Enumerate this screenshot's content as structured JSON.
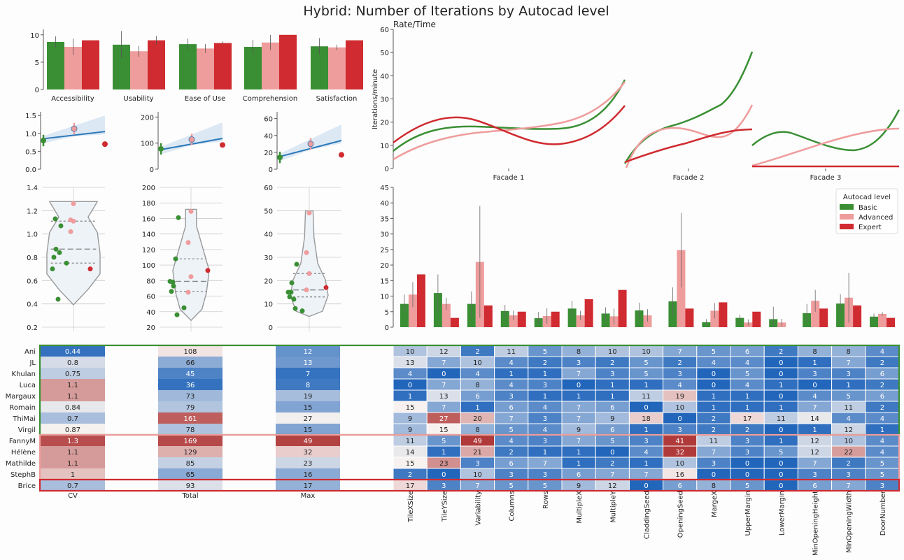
{
  "title": "Hybrid: Number of Iterations by Autocad level",
  "legend": {
    "title": "Autocad level",
    "items": [
      "Basic",
      "Advanced",
      "Expert"
    ]
  },
  "colors": {
    "Basic": "#3a8f34",
    "Advanced": "#ef9c9c",
    "Expert": "#cf2b30"
  },
  "chart_data": [
    {
      "type": "bar",
      "categories": [
        "Accessibility",
        "Usability",
        "Ease of Use",
        "Comprehension",
        "Satisfaction"
      ],
      "series": [
        {
          "name": "Basic",
          "values": [
            8.7,
            8.2,
            8.3,
            7.8,
            7.9
          ]
        },
        {
          "name": "Advanced",
          "values": [
            7.8,
            7.0,
            7.5,
            8.6,
            7.7
          ]
        },
        {
          "name": "Expert",
          "values": [
            9.0,
            9.0,
            8.5,
            10.0,
            9.0
          ]
        }
      ],
      "yticks": [
        "0",
        "5",
        "10"
      ],
      "ylim": [
        0,
        11
      ]
    },
    {
      "type": "scatter",
      "panels": [
        {
          "ylim": [
            0,
            1.6
          ],
          "yticks": [
            "0.0",
            "0.5",
            "1.0",
            "1.5"
          ],
          "points": {
            "Basic": 0.8,
            "Advanced": 1.13,
            "Expert": 0.7
          },
          "fit": [
            0.85,
            1.05
          ]
        },
        {
          "ylim": [
            0,
            220
          ],
          "yticks": [
            "0",
            "100",
            "200"
          ],
          "points": {
            "Basic": 78,
            "Advanced": 114,
            "Expert": 93
          },
          "fit": [
            75,
            118
          ]
        },
        {
          "ylim": [
            0,
            68
          ],
          "yticks": [
            "0",
            "20",
            "40",
            "60"
          ],
          "points": {
            "Basic": 14,
            "Advanced": 30,
            "Expert": 17
          },
          "fit": [
            15,
            34
          ]
        }
      ]
    },
    {
      "type": "line",
      "title": "Rate/Time",
      "ylabel": "Iterations/minute",
      "ylim": [
        0,
        60
      ],
      "yticks": [
        "0",
        "10",
        "20",
        "30",
        "40",
        "50",
        "60"
      ],
      "facets": [
        "Facade 1",
        "Facade 2",
        "Facade 3"
      ]
    },
    {
      "type": "violin",
      "panels": [
        {
          "ylim": [
            0.2,
            1.4
          ],
          "yticks": [
            "0.2",
            "0.4",
            "0.6",
            "0.8",
            "1.0",
            "1.2",
            "1.4"
          ],
          "Basic": [
            0.44,
            0.8,
            0.75,
            0.84,
            0.87,
            0.7,
            1.07,
            1.13
          ],
          "Advanced": [
            1.26,
            1.12,
            1.11,
            1.02
          ],
          "Expert": [
            0.7
          ]
        },
        {
          "ylim": [
            20,
            200
          ],
          "yticks": [
            "20",
            "40",
            "60",
            "80",
            "100",
            "120",
            "140",
            "160",
            "180",
            "200"
          ],
          "Basic": [
            108,
            66,
            45,
            36,
            73,
            79,
            161,
            78
          ],
          "Advanced": [
            169,
            129,
            85,
            65
          ],
          "Expert": [
            93
          ]
        },
        {
          "ylim": [
            0,
            60
          ],
          "yticks": [
            "0",
            "10",
            "20",
            "30",
            "40",
            "50",
            "60"
          ],
          "Basic": [
            12,
            13,
            7,
            8,
            19,
            15,
            27,
            15
          ],
          "Advanced": [
            49,
            32,
            23,
            16
          ],
          "Expert": [
            17
          ]
        }
      ]
    },
    {
      "type": "bar",
      "ylim": [
        0,
        45
      ],
      "yticks": [
        "0",
        "5",
        "10",
        "15",
        "20",
        "25",
        "30",
        "35",
        "40",
        "45"
      ],
      "categories": [
        "TileXSize",
        "TileYSize",
        "Variability",
        "Columns",
        "Rows",
        "MultipleX",
        "MultipleY",
        "CladdingSeed",
        "OpeningSeed",
        "MargeX",
        "UpperMargin",
        "LowerMargin",
        "MinOpeningHeight",
        "MinOpeningWidth",
        "DoorNumber"
      ],
      "series": [
        {
          "name": "Basic",
          "values": [
            7.5,
            11,
            7.5,
            5.2,
            2.9,
            6,
            4.4,
            5.4,
            8.3,
            1.6,
            3,
            2.6,
            4.5,
            7.6,
            3.4
          ]
        },
        {
          "name": "Advanced",
          "values": [
            10.5,
            7.5,
            21,
            3.8,
            3.6,
            3.8,
            3.5,
            3.8,
            24.8,
            5.3,
            1.5,
            1.5,
            8.5,
            9.5,
            4.3
          ]
        },
        {
          "name": "Expert",
          "values": [
            17,
            3,
            7,
            5,
            5,
            9,
            12,
            0,
            6,
            8,
            5,
            0,
            6,
            7,
            3
          ]
        }
      ]
    },
    {
      "type": "table",
      "rows": [
        "Ani",
        "JL",
        "Khulan",
        "Luca",
        "Margaux",
        "Romain",
        "ThiMai",
        "Virgil",
        "FannyM",
        "Hélène",
        "Mathilde",
        "StephB",
        "Brice"
      ],
      "groups": [
        {
          "name": "Basic",
          "rows": 8
        },
        {
          "name": "Advanced",
          "rows": 4
        },
        {
          "name": "Expert",
          "rows": 1
        }
      ],
      "left_columns": [
        "CV",
        "Total",
        "Max"
      ],
      "CV": [
        "0.44",
        "0.8",
        "0.75",
        "1.1",
        "1.1",
        "0.84",
        "0.7",
        "0.87",
        "1.3",
        "1.1",
        "1.1",
        "1",
        "0.7"
      ],
      "Total": [
        "108",
        "66",
        "45",
        "36",
        "73",
        "79",
        "161",
        "78",
        "169",
        "129",
        "85",
        "65",
        "93"
      ],
      "Max": [
        "12",
        "13",
        "7",
        "8",
        "19",
        "15",
        "27",
        "15",
        "49",
        "32",
        "23",
        "16",
        "17"
      ],
      "right_columns": [
        "TileXSize",
        "TileYSize",
        "Variability",
        "Columns",
        "Rows",
        "MultipleX",
        "MultipleY",
        "CladdingSeed",
        "OpeningSeed",
        "MargeX",
        "UpperMargin",
        "LowerMargin",
        "MinOpeningHeight",
        "MinOpeningWidth",
        "DoorNumber"
      ],
      "cells": [
        [
          10,
          12,
          2,
          11,
          5,
          8,
          10,
          10,
          7,
          5,
          6,
          2,
          8,
          8,
          4
        ],
        [
          13,
          7,
          10,
          4,
          2,
          3,
          2,
          5,
          2,
          4,
          4,
          0,
          1,
          7,
          2
        ],
        [
          4,
          0,
          4,
          1,
          1,
          7,
          3,
          5,
          3,
          0,
          5,
          0,
          3,
          3,
          6
        ],
        [
          0,
          7,
          8,
          4,
          3,
          0,
          1,
          1,
          4,
          0,
          4,
          1,
          0,
          1,
          2
        ],
        [
          1,
          13,
          6,
          3,
          1,
          1,
          1,
          11,
          19,
          1,
          1,
          0,
          4,
          5,
          6
        ],
        [
          15,
          7,
          1,
          6,
          4,
          7,
          6,
          0,
          10,
          1,
          1,
          1,
          7,
          11,
          2
        ],
        [
          9,
          27,
          20,
          7,
          3,
          7,
          9,
          18,
          0,
          2,
          17,
          11,
          14,
          4,
          4
        ],
        [
          9,
          15,
          8,
          5,
          4,
          9,
          6,
          1,
          3,
          2,
          2,
          0,
          1,
          12,
          1
        ],
        [
          11,
          5,
          49,
          4,
          3,
          7,
          5,
          3,
          41,
          11,
          3,
          1,
          12,
          10,
          4
        ],
        [
          14,
          1,
          21,
          2,
          1,
          1,
          0,
          4,
          32,
          7,
          3,
          5,
          12,
          22,
          4
        ],
        [
          15,
          23,
          3,
          6,
          7,
          1,
          2,
          1,
          10,
          3,
          0,
          0,
          7,
          2,
          5
        ],
        [
          2,
          0,
          10,
          3,
          3,
          6,
          7,
          7,
          16,
          0,
          0,
          0,
          3,
          3,
          5
        ],
        [
          17,
          3,
          7,
          5,
          5,
          9,
          12,
          0,
          6,
          8,
          5,
          0,
          6,
          7,
          3
        ]
      ]
    }
  ]
}
